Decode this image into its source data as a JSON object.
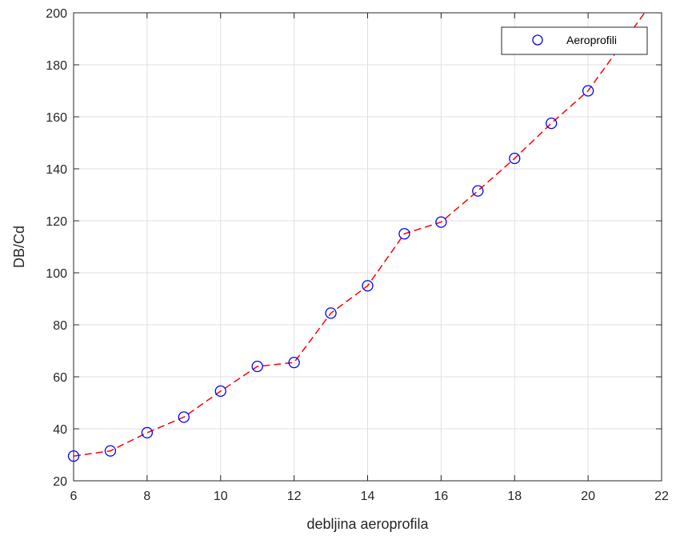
{
  "chart_data": {
    "type": "scatter",
    "title": "",
    "xlabel": "debljina aeroprofila",
    "ylabel": "DB/Cd",
    "xlim": [
      6,
      22
    ],
    "ylim": [
      20,
      200
    ],
    "xticks": [
      6,
      8,
      10,
      12,
      14,
      16,
      18,
      20,
      22
    ],
    "yticks": [
      20,
      40,
      60,
      80,
      100,
      120,
      140,
      160,
      180,
      200
    ],
    "grid": true,
    "legend_position": "top-right",
    "series": [
      {
        "name": "Aeroprofili",
        "marker": "circle",
        "color": "#0000ff",
        "x": [
          6,
          7,
          8,
          9,
          10,
          11,
          12,
          13,
          14,
          15,
          16,
          17,
          18,
          19,
          20
        ],
        "values": [
          29.5,
          31.5,
          38.5,
          44.5,
          54.5,
          64,
          65.5,
          84.5,
          95,
          115,
          119.5,
          131.5,
          144,
          157.5,
          170
        ]
      }
    ],
    "fit_line": {
      "color": "#ff0000",
      "style": "dashed",
      "x": [
        6,
        7,
        8,
        9,
        10,
        11,
        12,
        13,
        14,
        15,
        16,
        17,
        18,
        19,
        20,
        21,
        22
      ],
      "values": [
        29.5,
        31.5,
        38.5,
        44.5,
        54.5,
        64,
        65.5,
        84.5,
        95,
        115,
        119.5,
        131.5,
        144,
        157.5,
        170,
        189.5,
        209
      ]
    }
  }
}
